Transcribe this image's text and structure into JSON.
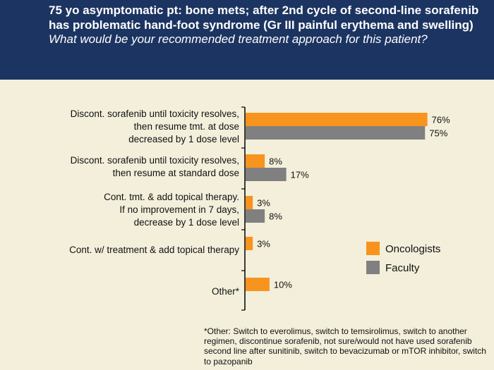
{
  "header": {
    "title": "75 yo asymptomatic pt: bone mets; after 2nd cycle of second-line sorafenib has problematic hand-foot syndrome (Gr III painful erythema and swelling)",
    "question": "What would be your recommended treatment approach for this patient?"
  },
  "colors": {
    "oncologists": "#f7941d",
    "faculty": "#808080",
    "header_bg": "#1c3461",
    "background": "#f3efdb"
  },
  "chart_data": {
    "type": "bar",
    "orientation": "horizontal",
    "categories": [
      [
        "Discont. sorafenib until toxicity resolves,",
        "then resume tmt. at dose",
        "decreased by 1 dose level"
      ],
      [
        "Discont. sorafenib until toxicity resolves,",
        "then resume at standard dose"
      ],
      [
        "Cont. tmt. & add topical therapy.",
        "If no improvement in 7 days,",
        "decrease by 1 dose level"
      ],
      [
        "Cont. w/ treatment & add topical therapy"
      ],
      [
        "Other*"
      ]
    ],
    "series": [
      {
        "name": "Oncologists",
        "values": [
          76,
          8,
          3,
          3,
          10
        ],
        "labels": [
          "76%",
          "8%",
          "3%",
          "3%",
          "10%"
        ]
      },
      {
        "name": "Faculty",
        "values": [
          75,
          17,
          8,
          null,
          null
        ],
        "labels": [
          "75%",
          "17%",
          "8%",
          "",
          ""
        ]
      }
    ],
    "xlim": [
      0,
      100
    ],
    "legend_position": "right",
    "grid": false
  },
  "footnote": "*Other: Switch to everolimus, switch to temsirolimus, switch to another regimen, discontinue sorafenib, not sure/would not have used sorafenib second line after sunitinib, switch to bevacizumab or mTOR inhibitor, switch to pazopanib"
}
